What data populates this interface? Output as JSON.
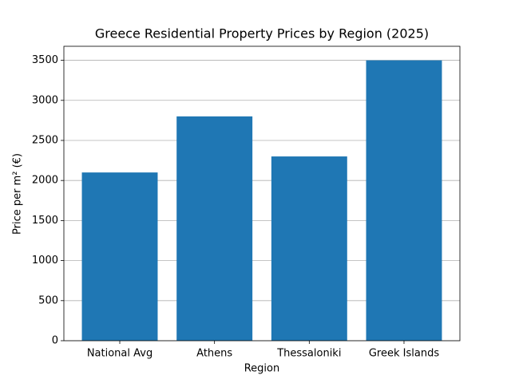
{
  "chart_data": {
    "type": "bar",
    "title": "Greece Residential Property Prices by Region (2025)",
    "x_label": "Region",
    "y_label": "Price per m² (€)",
    "categories": [
      "National Avg",
      "Athens",
      "Thessaloniki",
      "Greek Islands"
    ],
    "values": [
      2100,
      2800,
      2300,
      3500
    ],
    "color": "#1f77b4",
    "ylim": [
      0,
      3675
    ],
    "yticks": [
      0,
      500,
      1000,
      1500,
      2000,
      2500,
      3000,
      3500
    ],
    "grid": true
  }
}
